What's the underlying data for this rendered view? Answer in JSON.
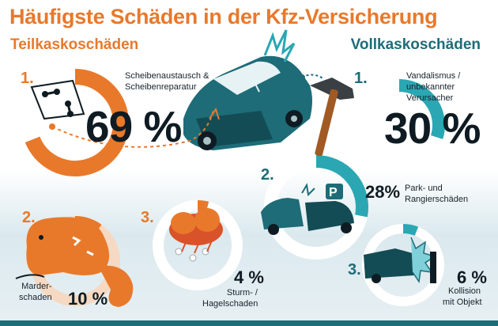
{
  "title": "Häufigste Schäden in der Kfz-Versicherung",
  "colors": {
    "orange": "#e8792b",
    "teal": "#1d6c78",
    "light_teal": "#2aa7b3",
    "dark": "#0f1b22"
  },
  "chart_data": [
    {
      "type": "pie",
      "title": "Teilkaskoschäden",
      "items": [
        {
          "rank": "1.",
          "label": "Scheibenaustausch & Scheibenreparatur",
          "label_lines": [
            "Scheibenaustausch &",
            "Scheibenreparatur"
          ],
          "value": 69,
          "value_text": "69 %",
          "icon": "windshield-icon"
        },
        {
          "rank": "2.",
          "label": "Marderschaden",
          "label_lines": [
            "Marder-",
            "schaden"
          ],
          "value": 10,
          "value_text": "10 %",
          "icon": "marten-icon"
        },
        {
          "rank": "3.",
          "label": "Sturm-/Hagelschaden",
          "label_lines": [
            "Sturm- /",
            "Hagelschaden"
          ],
          "value": 4,
          "value_text": "4 %",
          "icon": "hail-cloud-icon"
        }
      ]
    },
    {
      "type": "pie",
      "title": "Vollkaskoschäden",
      "items": [
        {
          "rank": "1.",
          "label": "Vandalismus / unbekannter Verursacher",
          "label_lines": [
            "Vandalismus /",
            "unbekannter",
            "Verursacher"
          ],
          "value": 30,
          "value_text": "30 %",
          "icon": "hammer-icon"
        },
        {
          "rank": "2.",
          "label": "Park- und Rangierschäden",
          "label_lines": [
            "Park- und",
            "Rangierschäden"
          ],
          "value": 28,
          "value_text": "28%",
          "icon": "parking-crash-icon"
        },
        {
          "rank": "3.",
          "label": "Kollision mit Objekt",
          "label_lines": [
            "Kollision",
            "mit Objekt"
          ],
          "value": 6,
          "value_text": "6 %",
          "icon": "car-collision-icon"
        }
      ]
    }
  ]
}
